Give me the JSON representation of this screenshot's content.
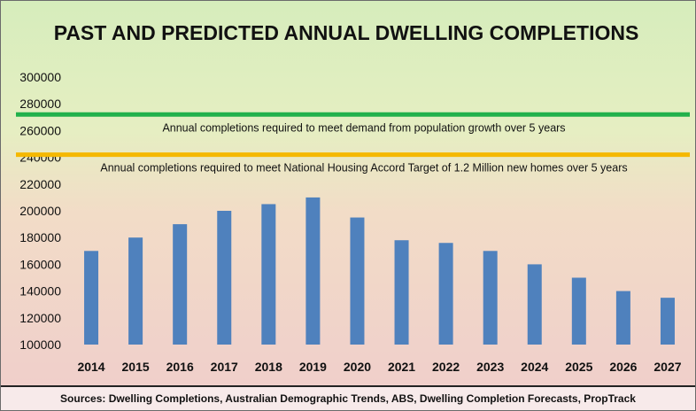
{
  "chart_data": {
    "type": "bar",
    "title": "PAST AND PREDICTED ANNUAL DWELLING COMPLETIONS",
    "xlabel": "",
    "ylabel": "",
    "categories": [
      "2014",
      "2015",
      "2016",
      "2017",
      "2018",
      "2019",
      "2020",
      "2021",
      "2022",
      "2023",
      "2024",
      "2025",
      "2026",
      "2027"
    ],
    "values": [
      170000,
      180000,
      190000,
      200000,
      205000,
      210000,
      195000,
      178000,
      176000,
      170000,
      160000,
      150000,
      140000,
      135000
    ],
    "ylim": [
      100000,
      300000
    ],
    "yticks": [
      "100000",
      "120000",
      "140000",
      "160000",
      "180000",
      "200000",
      "220000",
      "240000",
      "260000",
      "280000",
      "300000"
    ],
    "bar_color": "#4f81bd",
    "grid": false,
    "reference_lines": [
      {
        "value": 272000,
        "color": "#22b14c",
        "label": "Annual completions required to meet demand from population growth over 5 years"
      },
      {
        "value": 242000,
        "color": "#f5b800",
        "label": "Annual completions required to meet National Housing Accord Target of 1.2 Million new homes over 5 years"
      }
    ],
    "source": "Sources: Dwelling Completions, Australian Demographic Trends, ABS, Dwelling Completion Forecasts, PropTrack"
  }
}
